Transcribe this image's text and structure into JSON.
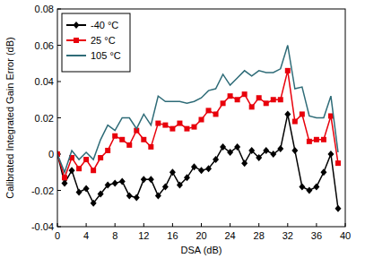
{
  "chart_data": {
    "type": "line",
    "x_label": "DSA (dB)",
    "y_label": "Calibrated Integrated Gain Error (dB)",
    "x": [
      0,
      1,
      2,
      3,
      4,
      5,
      6,
      7,
      8,
      9,
      10,
      11,
      12,
      13,
      14,
      15,
      16,
      17,
      18,
      19,
      20,
      21,
      22,
      23,
      24,
      25,
      26,
      27,
      28,
      29,
      30,
      31,
      32,
      33,
      34,
      35,
      36,
      37,
      38,
      39
    ],
    "series": [
      {
        "name": "-40 °C",
        "color": "#000000",
        "marker": "diamond",
        "values": [
          0,
          -0.016,
          -0.009,
          -0.021,
          -0.019,
          -0.027,
          -0.022,
          -0.017,
          -0.016,
          -0.015,
          -0.023,
          -0.024,
          -0.014,
          -0.014,
          -0.023,
          -0.018,
          -0.01,
          -0.017,
          -0.013,
          -0.007,
          -0.009,
          -0.008,
          -0.003,
          0.004,
          0.001,
          0.004,
          -0.005,
          0.002,
          -0.002,
          0.002,
          0.0,
          0.003,
          0.022,
          0.002,
          -0.018,
          -0.02,
          -0.018,
          -0.01,
          0.0,
          -0.03
        ]
      },
      {
        "name": "25 °C",
        "color": "#e8000b",
        "marker": "square",
        "values": [
          0,
          -0.013,
          -0.002,
          -0.008,
          -0.003,
          -0.009,
          -0.002,
          0.002,
          0.01,
          0.008,
          0.005,
          0.013,
          0.008,
          0.004,
          0.017,
          0.016,
          0.014,
          0.017,
          0.014,
          0.015,
          0.019,
          0.024,
          0.022,
          0.028,
          0.032,
          0.03,
          0.033,
          0.026,
          0.031,
          0.028,
          0.03,
          0.03,
          0.046,
          0.018,
          0.022,
          0.007,
          0.008,
          0.008,
          0.021,
          -0.005
        ]
      },
      {
        "name": "105 °C",
        "color": "#2f6c78",
        "marker": "none",
        "values": [
          0,
          -0.01,
          0.002,
          -0.003,
          0.001,
          -0.003,
          0.008,
          0.016,
          0.013,
          0.02,
          0.02,
          0.014,
          0.022,
          0.016,
          0.032,
          0.029,
          0.029,
          0.029,
          0.028,
          0.029,
          0.031,
          0.035,
          0.036,
          0.044,
          0.038,
          0.042,
          0.046,
          0.043,
          0.046,
          0.045,
          0.045,
          0.047,
          0.06,
          0.036,
          0.037,
          0.021,
          0.02,
          0.02,
          0.032,
          0.001
        ]
      }
    ],
    "xlim": [
      0,
      40
    ],
    "xticks": [
      0,
      4,
      8,
      12,
      16,
      20,
      24,
      28,
      32,
      36,
      40
    ],
    "ylim": [
      -0.04,
      0.08
    ],
    "yticks": [
      -0.04,
      -0.02,
      0,
      0.02,
      0.04,
      0.06,
      0.08
    ],
    "grid": false,
    "legend": "upper left"
  }
}
